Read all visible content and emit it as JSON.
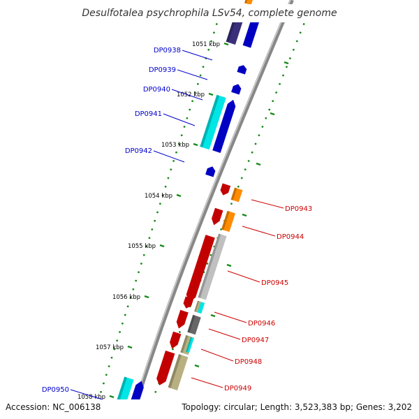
{
  "title": "Desulfotalea psychrophila LSv54, complete genome",
  "footer": {
    "accession": "Accession: NC_006138",
    "topology": "Topology: circular; Length: 3,523,383 bp; Genes: 3,202"
  },
  "colors": {
    "plus_strand_label": "#0000cc",
    "minus_strand_label": "#cc0000",
    "tick": "#1a8a1a",
    "backbone": "#888888"
  },
  "kbp_ticks": [
    "1051 kbp",
    "1052 kbp",
    "1053 kbp",
    "1054 kbp",
    "1055 kbp",
    "1056 kbp",
    "1057 kbp",
    "1058 kbp"
  ],
  "genes": [
    {
      "id": "DP0938",
      "strand": "+"
    },
    {
      "id": "DP0939",
      "strand": "+"
    },
    {
      "id": "DP0940",
      "strand": "+"
    },
    {
      "id": "DP0941",
      "strand": "+"
    },
    {
      "id": "DP0942",
      "strand": "+"
    },
    {
      "id": "DP0943",
      "strand": "-"
    },
    {
      "id": "DP0944",
      "strand": "-"
    },
    {
      "id": "DP0945",
      "strand": "-"
    },
    {
      "id": "DP0946",
      "strand": "-"
    },
    {
      "id": "DP0947",
      "strand": "-"
    },
    {
      "id": "DP0948",
      "strand": "-"
    },
    {
      "id": "DP0949",
      "strand": "-"
    },
    {
      "id": "DP0950",
      "strand": "+"
    }
  ]
}
